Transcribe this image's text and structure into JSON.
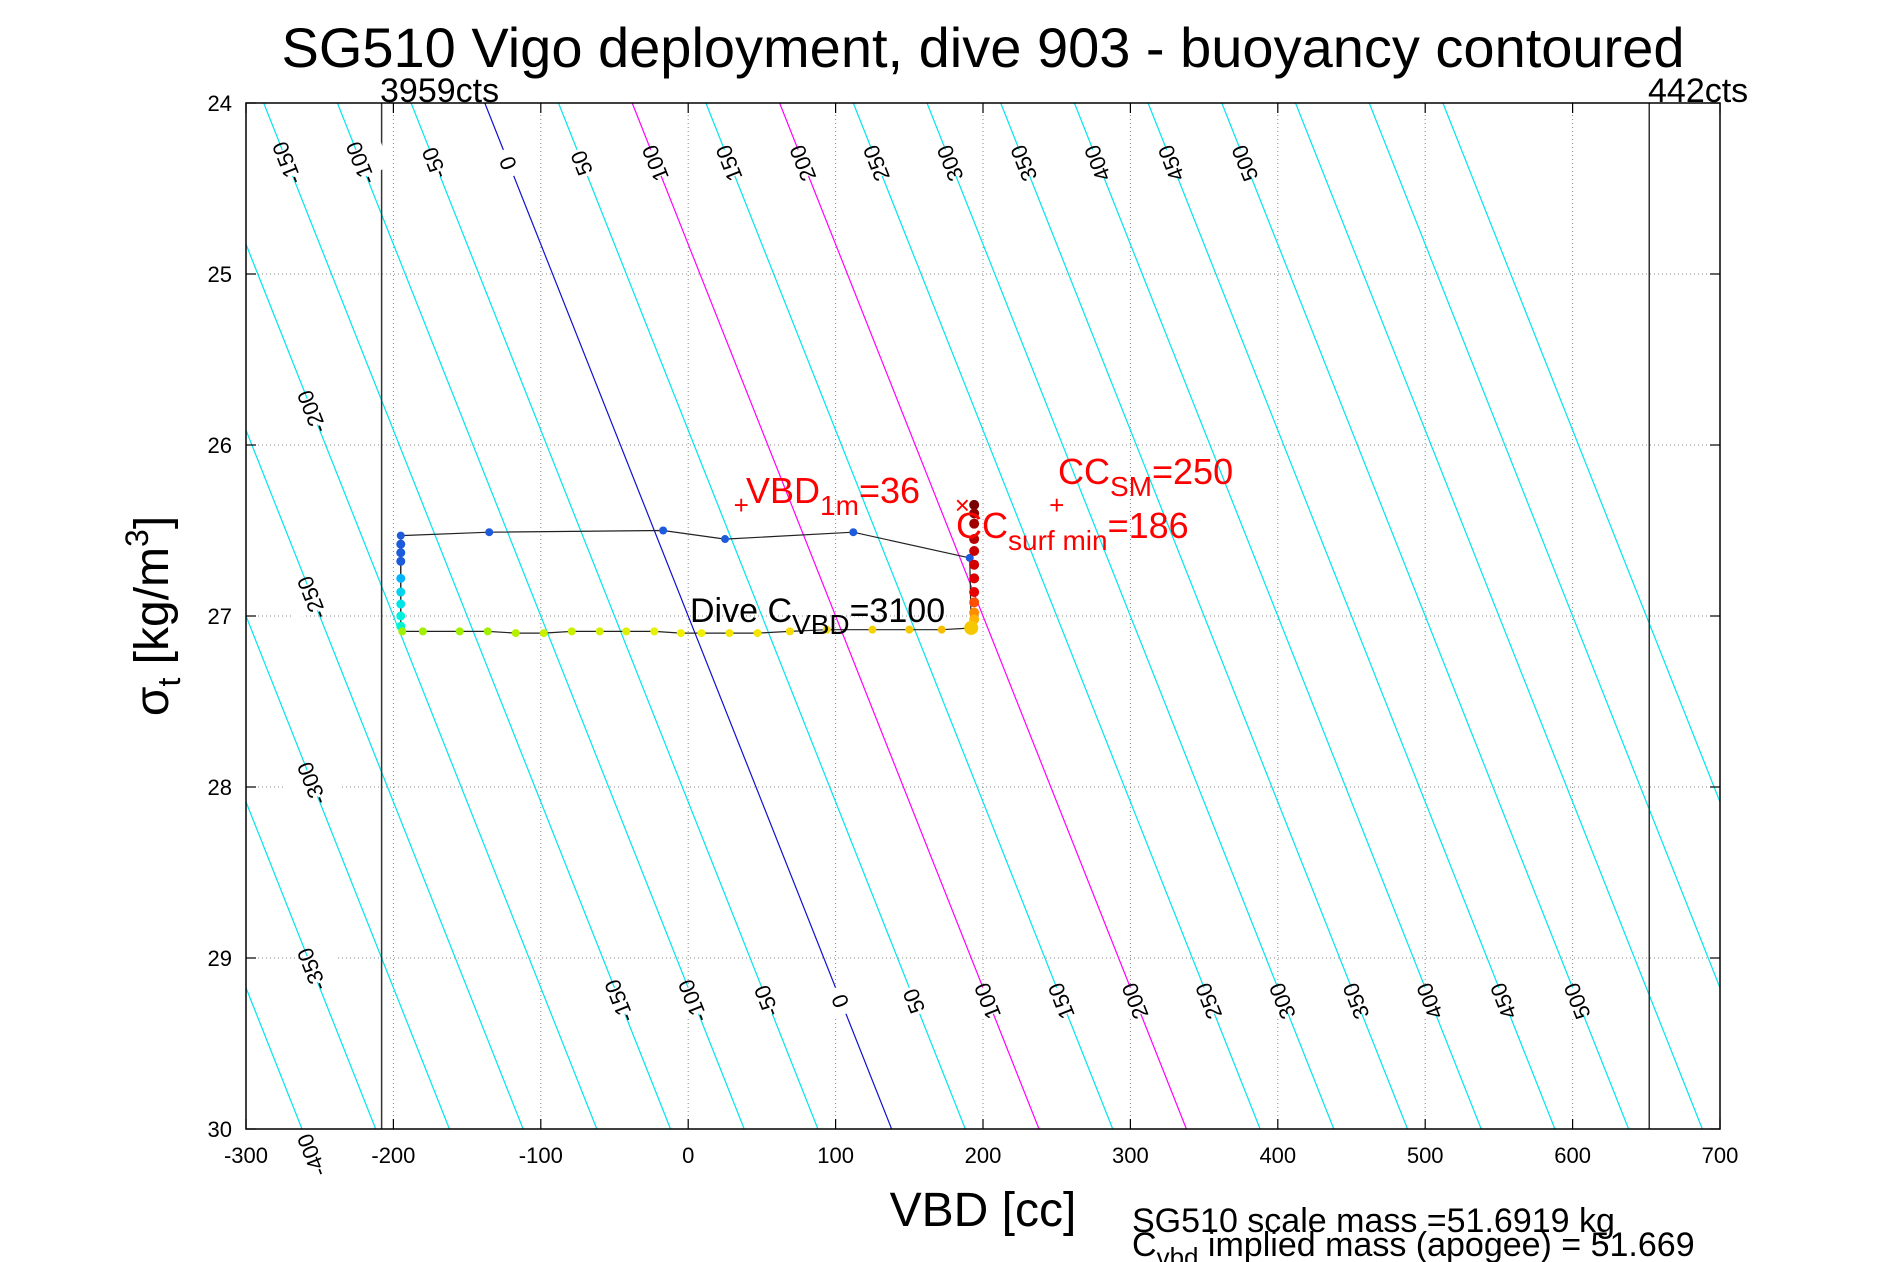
{
  "chart_data": {
    "type": "scatter",
    "title": "SG510 Vigo deployment, dive 903 - buoyancy contoured",
    "xlabel": "VBD [cc]",
    "ylabel_base": "σ",
    "ylabel_sub": "t",
    "ylabel_rest": " [kg/m",
    "ylabel_sup": "3",
    "ylabel_end": "]",
    "xlim": [
      -300,
      700
    ],
    "ylim": [
      24,
      30
    ],
    "y_reversed": true,
    "grid": true,
    "x_ticks": [
      -300,
      -200,
      -100,
      0,
      100,
      200,
      300,
      400,
      500,
      600,
      700
    ],
    "x_tick_labels": [
      "-300",
      "-200",
      "-100",
      "0",
      "100",
      "200",
      "300",
      "400",
      "500",
      "600",
      "700"
    ],
    "y_ticks": [
      24,
      25,
      26,
      27,
      28,
      29,
      30
    ],
    "y_tick_labels": [
      "24",
      "25",
      "26",
      "27",
      "28",
      "29",
      "30"
    ],
    "vbd_limits": [
      {
        "x": -208,
        "label": "3959cts"
      },
      {
        "x": 652,
        "label": "442cts"
      }
    ],
    "contour_spacing_cc": 50,
    "contour_slope_cc_per_unit_sigma": 46,
    "contour_colors": {
      "default": "#00e5ee",
      "zero": "#1010d0",
      "highlight": "#ff00ff"
    },
    "highlight_contours": [
      100,
      200
    ],
    "contour_labels_top": [
      "-400",
      "-350",
      "-300",
      "-250",
      "-200",
      "-150",
      "-100",
      "-50",
      "0",
      "50",
      "100",
      "150",
      "200",
      "250",
      "300",
      "350",
      "400",
      "450",
      "500"
    ],
    "contour_labels_bottom": [
      "-150",
      "-100",
      "-50",
      "0",
      "50",
      "100",
      "150",
      "200",
      "250",
      "300",
      "350",
      "400",
      "450",
      "500"
    ],
    "dive_track": [
      {
        "x": -195,
        "y": 26.53,
        "c": "#1e5adc"
      },
      {
        "x": -135,
        "y": 26.51,
        "c": "#1e5adc"
      },
      {
        "x": -17,
        "y": 26.5,
        "c": "#1e5adc"
      },
      {
        "x": 25,
        "y": 26.55,
        "c": "#1e5adc"
      },
      {
        "x": 112,
        "y": 26.51,
        "c": "#1e5adc"
      },
      {
        "x": 191,
        "y": 26.66,
        "c": "#1e5adc"
      }
    ],
    "apogee_column": [
      {
        "x": -195,
        "y": 26.58,
        "c": "#1e5adc"
      },
      {
        "x": -195,
        "y": 26.63,
        "c": "#1e5adc"
      },
      {
        "x": -195,
        "y": 26.68,
        "c": "#1e5adc"
      },
      {
        "x": -195,
        "y": 26.78,
        "c": "#00b4ff"
      },
      {
        "x": -195,
        "y": 26.86,
        "c": "#00d2f0"
      },
      {
        "x": -195,
        "y": 26.93,
        "c": "#00e6e6"
      },
      {
        "x": -195,
        "y": 27.0,
        "c": "#00f0dc"
      },
      {
        "x": -195,
        "y": 27.06,
        "c": "#00f5d0"
      }
    ],
    "climb_track": [
      {
        "x": -194,
        "y": 27.09,
        "c": "#a0f000"
      },
      {
        "x": -180,
        "y": 27.09,
        "c": "#a0f000"
      },
      {
        "x": -155,
        "y": 27.09,
        "c": "#a0f000"
      },
      {
        "x": -136,
        "y": 27.09,
        "c": "#a0f000"
      },
      {
        "x": -117,
        "y": 27.1,
        "c": "#b4f000"
      },
      {
        "x": -98,
        "y": 27.1,
        "c": "#c8f000"
      },
      {
        "x": -79,
        "y": 27.09,
        "c": "#c8f000"
      },
      {
        "x": -60,
        "y": 27.09,
        "c": "#d2f000"
      },
      {
        "x": -42,
        "y": 27.09,
        "c": "#dcf000"
      },
      {
        "x": -23,
        "y": 27.09,
        "c": "#e6f000"
      },
      {
        "x": -5,
        "y": 27.1,
        "c": "#f0f000"
      },
      {
        "x": 9,
        "y": 27.1,
        "c": "#f0f000"
      },
      {
        "x": 28,
        "y": 27.1,
        "c": "#f5e600"
      },
      {
        "x": 47,
        "y": 27.1,
        "c": "#f5e600"
      },
      {
        "x": 69,
        "y": 27.09,
        "c": "#f5dc00"
      },
      {
        "x": 94,
        "y": 27.08,
        "c": "#f5dc00"
      },
      {
        "x": 125,
        "y": 27.08,
        "c": "#f5d200"
      },
      {
        "x": 150,
        "y": 27.08,
        "c": "#f5c800"
      },
      {
        "x": 172,
        "y": 27.08,
        "c": "#f5be00"
      },
      {
        "x": 192,
        "y": 27.07,
        "c": "#f5aa00"
      }
    ],
    "surface_column": [
      {
        "x": 194,
        "y": 26.35,
        "c": "#780000"
      },
      {
        "x": 194,
        "y": 26.4,
        "c": "#8c0000"
      },
      {
        "x": 194,
        "y": 26.46,
        "c": "#a00000"
      },
      {
        "x": 194,
        "y": 26.55,
        "c": "#b40000"
      },
      {
        "x": 194,
        "y": 26.62,
        "c": "#c80000"
      },
      {
        "x": 194,
        "y": 26.7,
        "c": "#d20000"
      },
      {
        "x": 194,
        "y": 26.78,
        "c": "#dc0000"
      },
      {
        "x": 194,
        "y": 26.86,
        "c": "#e60000"
      },
      {
        "x": 194,
        "y": 26.92,
        "c": "#ff5000"
      },
      {
        "x": 194,
        "y": 26.98,
        "c": "#ff8c00"
      },
      {
        "x": 194,
        "y": 27.02,
        "c": "#ffb400"
      }
    ],
    "markers": [
      {
        "x": 36,
        "y": 26.35,
        "symbol": "+"
      },
      {
        "x": 186,
        "y": 26.35,
        "symbol": "×"
      },
      {
        "x": 250,
        "y": 26.35,
        "symbol": "+"
      }
    ],
    "annotations": {
      "vbd1m": {
        "main": "VBD",
        "sub": "1m",
        "rest": "=36"
      },
      "ccsm": {
        "main": "CC",
        "sub": "SM",
        "rest": "=250"
      },
      "ccsurf": {
        "main": "CC",
        "sub": "surf min",
        "rest": "=186"
      },
      "divec": {
        "main": "Dive C",
        "sub": "VBD",
        "rest": "=3100"
      }
    },
    "footer": {
      "line1": "SG510 scale mass =51.6919 kg",
      "line2_main": "C",
      "line2_sub": "vbd",
      "line2_rest": " implied mass (apogee) = 51.669"
    }
  }
}
